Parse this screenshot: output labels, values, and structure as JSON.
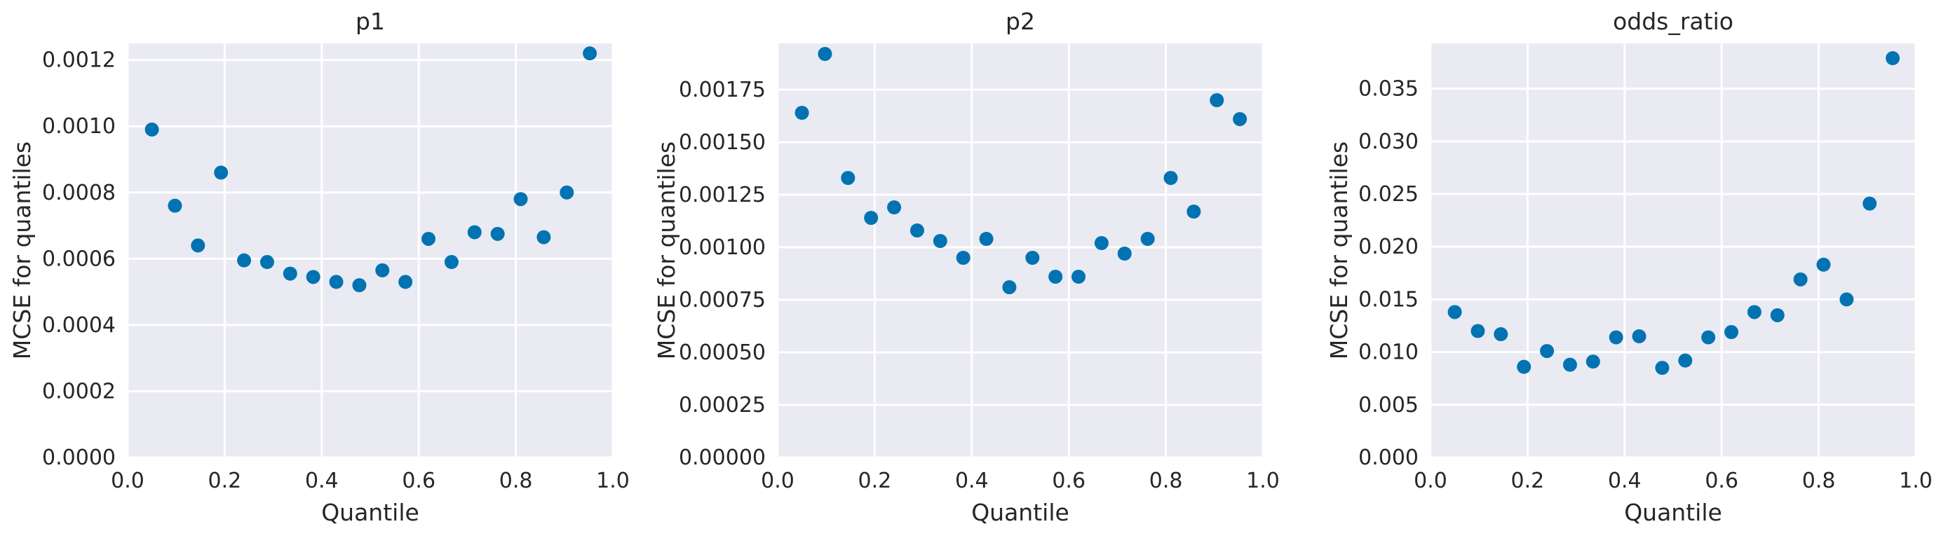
{
  "chart_data": [
    {
      "type": "scatter",
      "title": "p1",
      "xlabel": "Quantile",
      "ylabel": "MCSE for quantiles",
      "xlim": [
        0.0,
        1.0
      ],
      "ylim": [
        0.0,
        0.00125
      ],
      "xticks": [
        "0.0",
        "0.2",
        "0.4",
        "0.6",
        "0.8",
        "1.0"
      ],
      "yticks": [
        "0.0000",
        "0.0002",
        "0.0004",
        "0.0006",
        "0.0008",
        "0.0010",
        "0.0012"
      ],
      "grid": true,
      "color": "#0173b2",
      "x": [
        0.05,
        0.0975,
        0.145,
        0.1925,
        0.24,
        0.2875,
        0.335,
        0.3825,
        0.43,
        0.4775,
        0.525,
        0.5725,
        0.62,
        0.6675,
        0.715,
        0.7625,
        0.81,
        0.8575,
        0.905,
        0.9525
      ],
      "y": [
        0.00099,
        0.00076,
        0.00064,
        0.00086,
        0.000595,
        0.00059,
        0.000555,
        0.000545,
        0.00053,
        0.00052,
        0.000565,
        0.00053,
        0.00066,
        0.00059,
        0.00068,
        0.000675,
        0.00078,
        0.000665,
        0.0008,
        0.00122
      ]
    },
    {
      "type": "scatter",
      "title": "p2",
      "xlabel": "Quantile",
      "ylabel": "MCSE for quantiles",
      "xlim": [
        0.0,
        1.0
      ],
      "ylim": [
        0.0,
        0.00197
      ],
      "xticks": [
        "0.0",
        "0.2",
        "0.4",
        "0.6",
        "0.8",
        "1.0"
      ],
      "yticks": [
        "0.00000",
        "0.00025",
        "0.00050",
        "0.00075",
        "0.00100",
        "0.00125",
        "0.00150",
        "0.00175"
      ],
      "grid": true,
      "color": "#0173b2",
      "x": [
        0.05,
        0.0975,
        0.145,
        0.1925,
        0.24,
        0.2875,
        0.335,
        0.3825,
        0.43,
        0.4775,
        0.525,
        0.5725,
        0.62,
        0.6675,
        0.715,
        0.7625,
        0.81,
        0.8575,
        0.905,
        0.9525
      ],
      "y": [
        0.00164,
        0.00192,
        0.00133,
        0.00114,
        0.00119,
        0.00108,
        0.00103,
        0.00095,
        0.00104,
        0.00081,
        0.00095,
        0.00086,
        0.00086,
        0.00102,
        0.00097,
        0.00104,
        0.00133,
        0.00117,
        0.0017,
        0.00161
      ]
    },
    {
      "type": "scatter",
      "title": "odds_ratio",
      "xlabel": "Quantile",
      "ylabel": "MCSE for quantiles",
      "xlim": [
        0.0,
        1.0
      ],
      "ylim": [
        0.0,
        0.0393
      ],
      "xticks": [
        "0.0",
        "0.2",
        "0.4",
        "0.6",
        "0.8",
        "1.0"
      ],
      "yticks": [
        "0.000",
        "0.005",
        "0.010",
        "0.015",
        "0.020",
        "0.025",
        "0.030",
        "0.035"
      ],
      "grid": true,
      "color": "#0173b2",
      "x": [
        0.05,
        0.0975,
        0.145,
        0.1925,
        0.24,
        0.2875,
        0.335,
        0.3825,
        0.43,
        0.4775,
        0.525,
        0.5725,
        0.62,
        0.6675,
        0.715,
        0.7625,
        0.81,
        0.8575,
        0.905,
        0.9525
      ],
      "y": [
        0.0138,
        0.012,
        0.0117,
        0.0086,
        0.0101,
        0.0088,
        0.0091,
        0.0114,
        0.0115,
        0.0085,
        0.0092,
        0.0114,
        0.0119,
        0.0138,
        0.0135,
        0.0169,
        0.0183,
        0.015,
        0.0241,
        0.0379
      ]
    }
  ]
}
